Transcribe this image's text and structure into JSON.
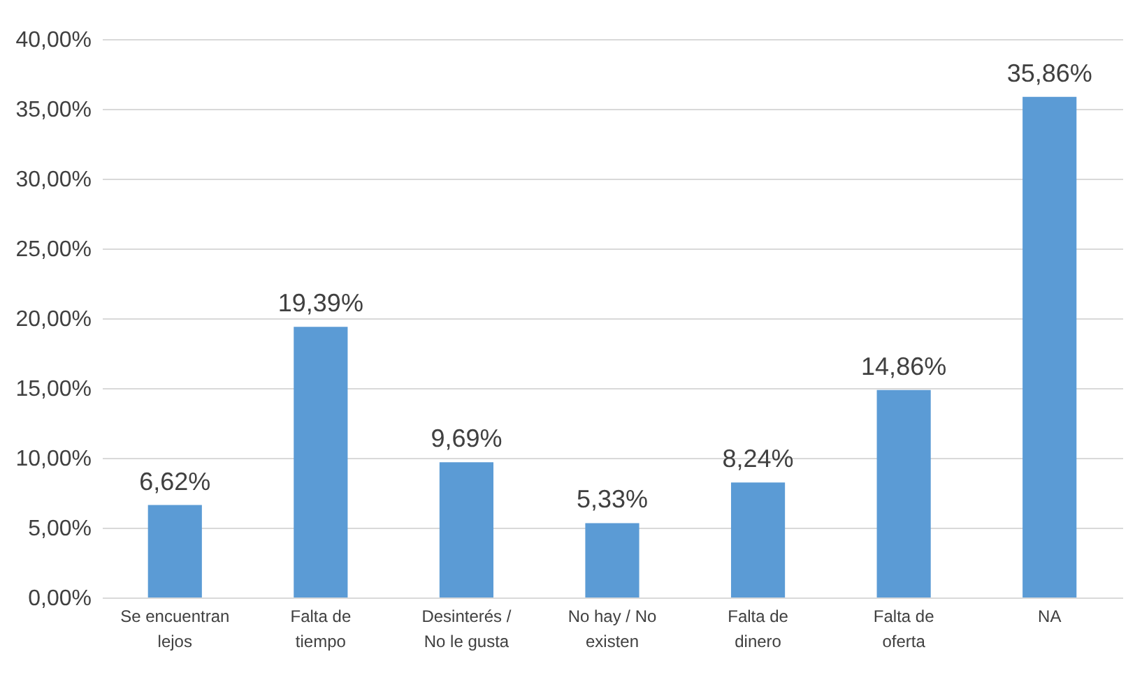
{
  "chart_data": {
    "type": "bar",
    "categories": [
      "Se encuentran lejos",
      "Falta de tiempo",
      "Desinterés / No le gusta",
      "No hay / No existen",
      "Falta de dinero",
      "Falta de oferta",
      "NA"
    ],
    "values": [
      6.62,
      19.39,
      9.69,
      5.33,
      8.24,
      14.86,
      35.86
    ],
    "value_labels": [
      "6,62%",
      "19,39%",
      "9,69%",
      "5,33%",
      "8,24%",
      "14,86%",
      "35,86%"
    ],
    "color": "#5b9bd5",
    "ylim": [
      0,
      40
    ],
    "yticks": [
      {
        "value": 0,
        "label": "0,00%"
      },
      {
        "value": 5,
        "label": "5,00%"
      },
      {
        "value": 10,
        "label": "10,00%"
      },
      {
        "value": 15,
        "label": "15,00%"
      },
      {
        "value": 20,
        "label": "20,00%"
      },
      {
        "value": 25,
        "label": "25,00%"
      },
      {
        "value": 30,
        "label": "30,00%"
      },
      {
        "value": 35,
        "label": "35,00%"
      },
      {
        "value": 40,
        "label": "40,00%"
      }
    ],
    "grid": true
  }
}
